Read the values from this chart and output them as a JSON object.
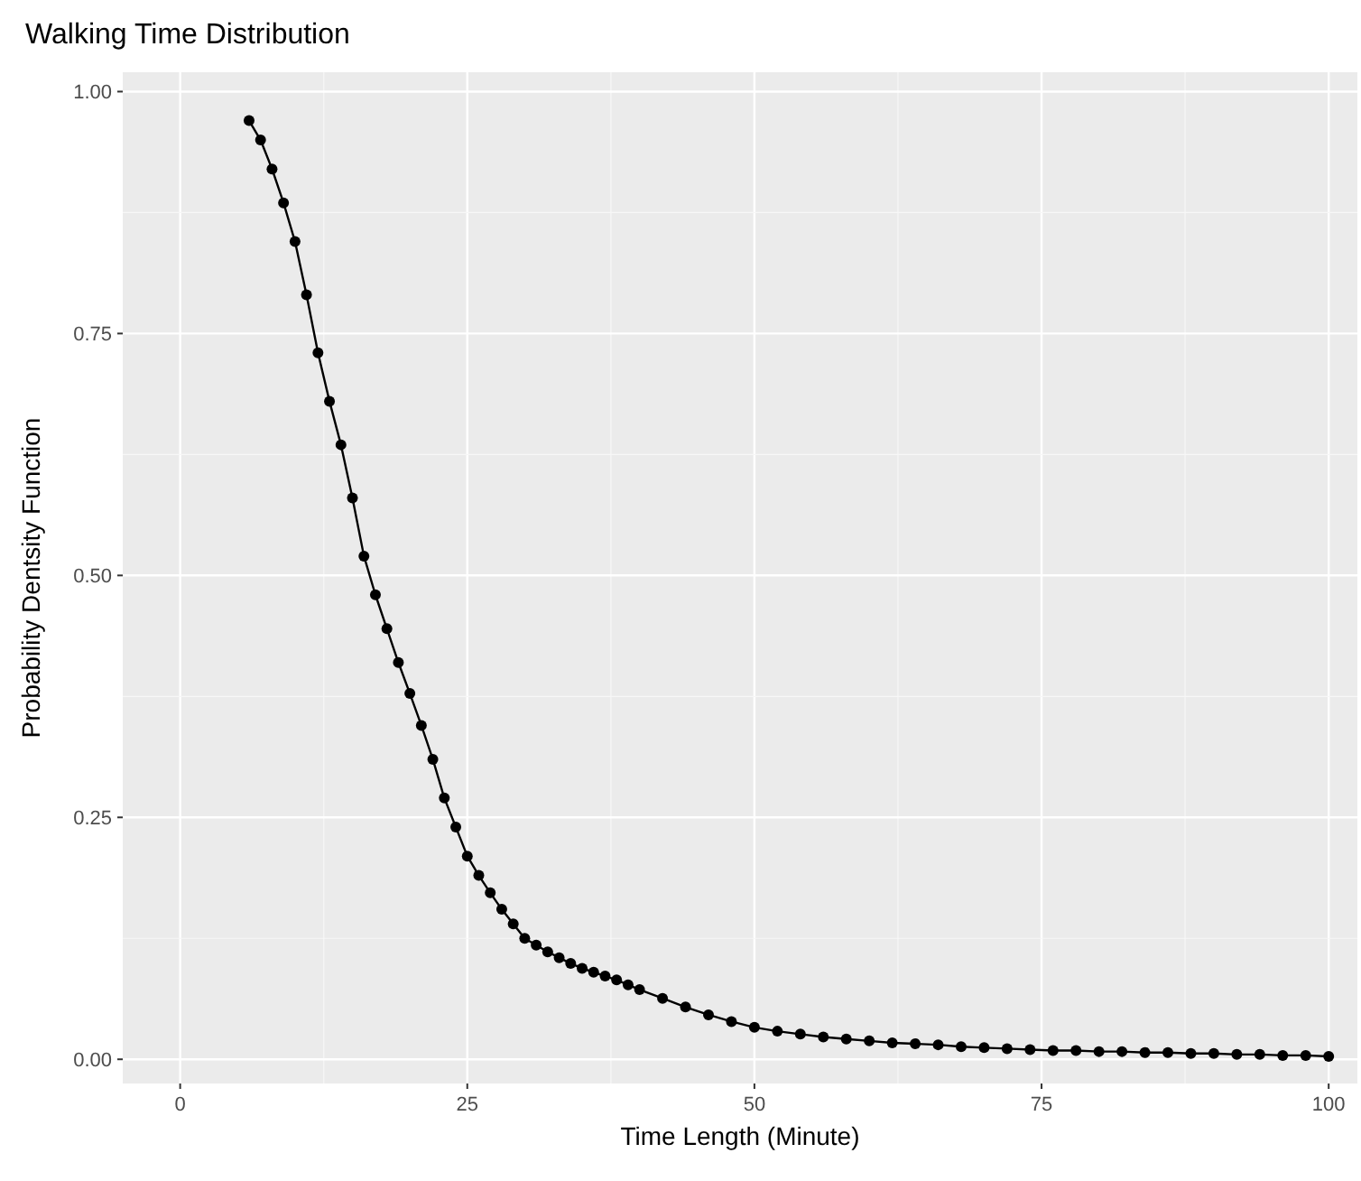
{
  "chart_data": {
    "type": "line",
    "title": "Walking Time Distribution",
    "xlabel": "Time Length (Minute)",
    "ylabel": "Probability Dentsity Function",
    "x": [
      6,
      7,
      8,
      9,
      10,
      11,
      12,
      13,
      14,
      15,
      16,
      17,
      18,
      19,
      20,
      21,
      22,
      23,
      24,
      25,
      26,
      27,
      28,
      29,
      30,
      31,
      32,
      33,
      34,
      35,
      36,
      37,
      38,
      39,
      40,
      42,
      44,
      46,
      48,
      50,
      52,
      54,
      56,
      58,
      60,
      62,
      64,
      66,
      68,
      70,
      72,
      74,
      76,
      78,
      80,
      82,
      84,
      86,
      88,
      90,
      92,
      94,
      96,
      98,
      100
    ],
    "series": [
      {
        "color": "#000000",
        "values": [
          0.97,
          0.95,
          0.92,
          0.885,
          0.845,
          0.79,
          0.73,
          0.68,
          0.635,
          0.58,
          0.52,
          0.48,
          0.445,
          0.41,
          0.378,
          0.345,
          0.31,
          0.27,
          0.24,
          0.21,
          0.19,
          0.172,
          0.155,
          0.14,
          0.125,
          0.118,
          0.111,
          0.105,
          0.099,
          0.094,
          0.09,
          0.086,
          0.082,
          0.077,
          0.072,
          0.063,
          0.054,
          0.046,
          0.039,
          0.033,
          0.029,
          0.026,
          0.023,
          0.021,
          0.019,
          0.017,
          0.016,
          0.015,
          0.013,
          0.012,
          0.011,
          0.01,
          0.009,
          0.009,
          0.008,
          0.008,
          0.007,
          0.007,
          0.006,
          0.006,
          0.005,
          0.005,
          0.004,
          0.004,
          0.003
        ]
      }
    ],
    "xlim": [
      -5,
      102.5
    ],
    "ylim": [
      -0.025,
      1.02
    ],
    "xticks": [
      0,
      25,
      50,
      75,
      100
    ],
    "yticks": [
      {
        "value": 0,
        "label": "0.00"
      },
      {
        "value": 0.25,
        "label": "0.25"
      },
      {
        "value": 0.5,
        "label": "0.50"
      },
      {
        "value": 0.75,
        "label": "0.75"
      },
      {
        "value": 1,
        "label": "1.00"
      }
    ],
    "grid": true,
    "marker": "circle",
    "line_style": "solid"
  }
}
